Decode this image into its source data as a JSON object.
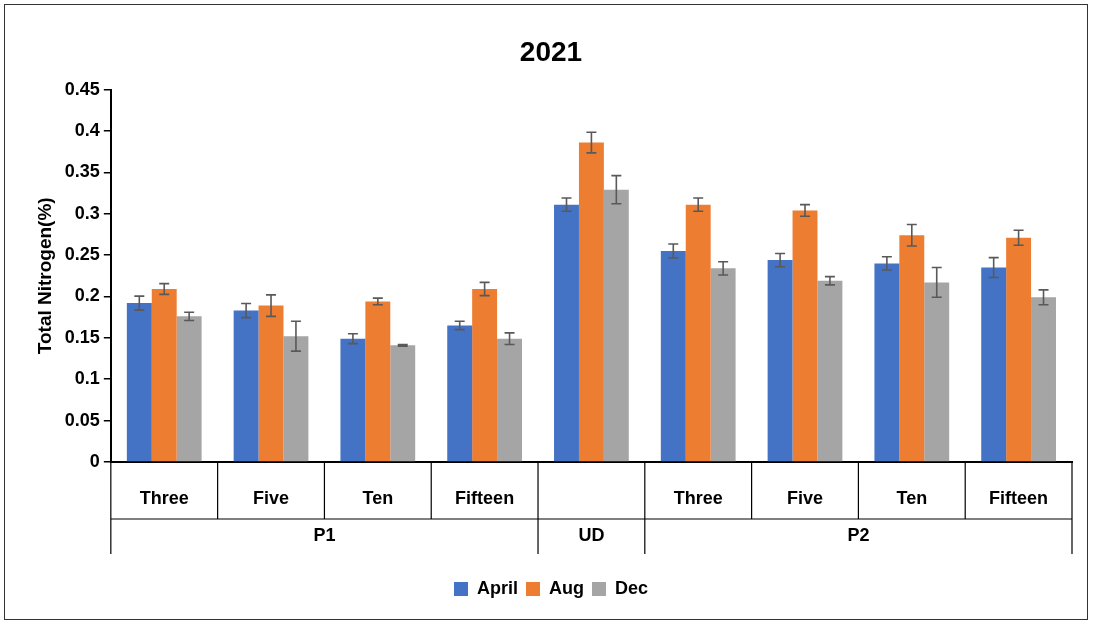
{
  "chart_data": {
    "type": "bar",
    "title": "2021",
    "ylabel": "Total Nitrogen(%)",
    "categories": [
      "Three",
      "Five",
      "Ten",
      "Fifteen",
      null,
      "Three",
      "Five",
      "Ten",
      "Fifteen"
    ],
    "annotations": [
      "P1",
      "UD",
      "P2"
    ],
    "series": [
      {
        "name": "April",
        "color": "#4472c4",
        "values": [
          0.192,
          0.183,
          0.149,
          0.165,
          0.311,
          0.255,
          0.244,
          0.24,
          0.235
        ],
        "errors": [
          0.0085,
          0.0085,
          0.006,
          0.005,
          0.008,
          0.0085,
          0.008,
          0.008,
          0.012
        ]
      },
      {
        "name": "Aug",
        "color": "#ed7d31",
        "values": [
          0.209,
          0.189,
          0.194,
          0.209,
          0.386,
          0.311,
          0.304,
          0.274,
          0.271
        ],
        "errors": [
          0.0065,
          0.013,
          0.004,
          0.008,
          0.0125,
          0.008,
          0.007,
          0.013,
          0.009
        ]
      },
      {
        "name": "Dec",
        "color": "#a5a5a5",
        "values": [
          0.176,
          0.152,
          0.141,
          0.149,
          0.329,
          0.234,
          0.219,
          0.217,
          0.199
        ],
        "errors": [
          0.005,
          0.018,
          0.001,
          0.007,
          0.017,
          0.008,
          0.005,
          0.018,
          0.009
        ]
      }
    ],
    "ylim": [
      0,
      0.45
    ],
    "yticks": [
      0,
      0.05,
      0.1,
      0.15,
      0.2,
      0.25,
      0.3,
      0.35,
      0.4,
      0.45
    ],
    "grid": false,
    "legend": "bottom"
  }
}
